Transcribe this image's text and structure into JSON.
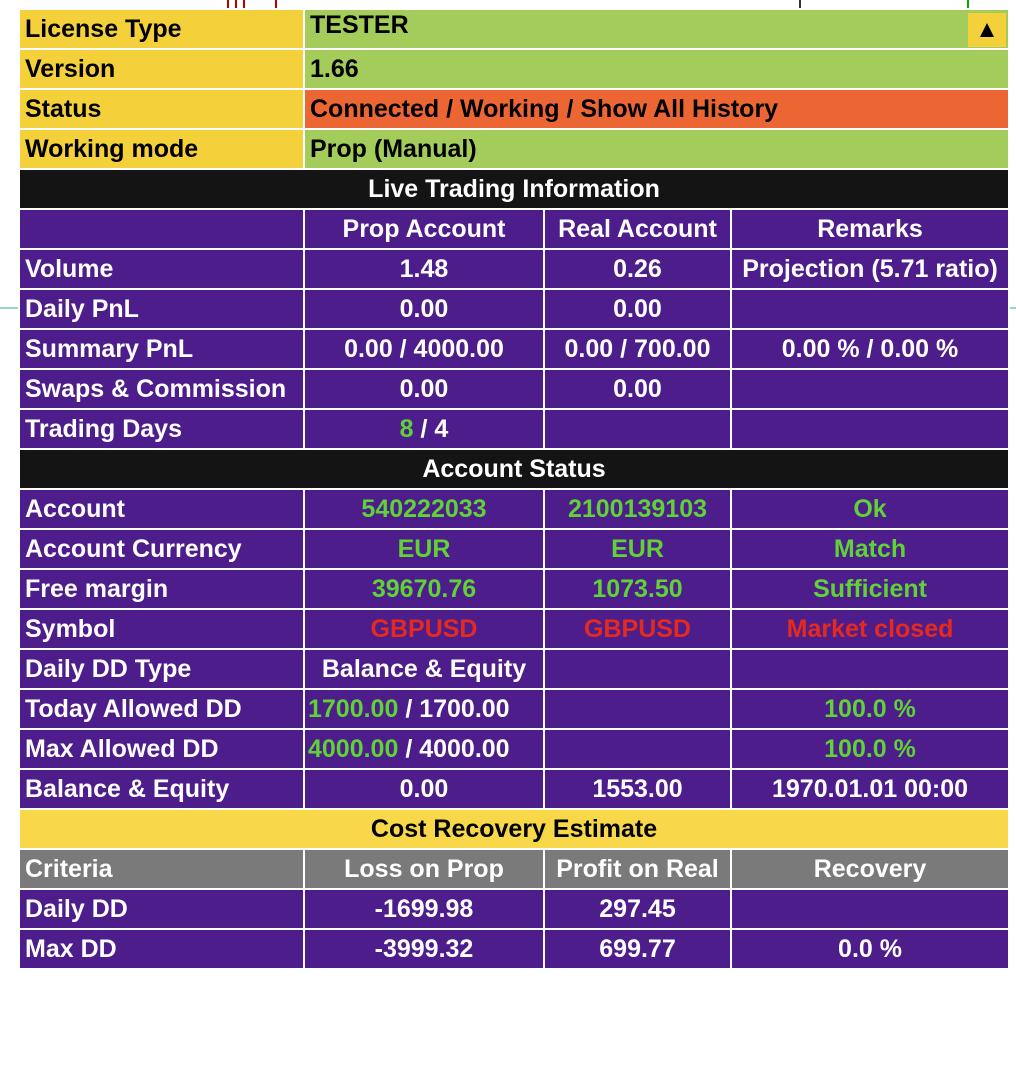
{
  "info": {
    "license_label": "License Type",
    "license_value": "TESTER",
    "version_label": "Version",
    "version_value": "1.66",
    "status_label": "Status",
    "status_value": "Connected / Working / Show All History",
    "mode_label": "Working mode",
    "mode_value": "Prop (Manual)",
    "collapse_icon": "▲"
  },
  "live": {
    "title": "Live Trading Information",
    "headers": [
      "",
      "Prop Account",
      "Real Account",
      "Remarks"
    ],
    "rows": [
      {
        "label": "Volume",
        "prop": "1.48",
        "real": "0.26",
        "remark": "Projection (5.71 ratio)"
      },
      {
        "label": "Daily PnL",
        "prop": "0.00",
        "real": "0.00",
        "remark": ""
      },
      {
        "label": "Summary PnL",
        "prop": "0.00 / 4000.00",
        "real": "0.00 / 700.00",
        "remark": "0.00 % / 0.00 %"
      },
      {
        "label": "Swaps & Commission",
        "prop": "0.00",
        "real": "0.00",
        "remark": ""
      },
      {
        "label": "Trading Days",
        "prop_a": "8",
        "prop_b": " / 4",
        "real": "",
        "remark": ""
      }
    ]
  },
  "account": {
    "title": "Account Status",
    "rows": [
      {
        "label": "Account",
        "prop": "540222033",
        "real": "2100139103",
        "remark": "Ok"
      },
      {
        "label": "Account Currency",
        "prop": "EUR",
        "real": "EUR",
        "remark": "Match"
      },
      {
        "label": "Free margin",
        "prop": "39670.76",
        "real": "1073.50",
        "remark": "Sufficient"
      },
      {
        "label": "Symbol",
        "prop": "GBPUSD",
        "real": "GBPUSD",
        "remark": "Market closed"
      },
      {
        "label": "Daily DD Type",
        "prop": "Balance & Equity",
        "real": "",
        "remark": ""
      },
      {
        "label": "Today Allowed DD",
        "prop_a": "1700.00",
        "prop_b": " / 1700.00",
        "real": "",
        "remark": "100.0 %"
      },
      {
        "label": "Max Allowed DD",
        "prop_a": "4000.00",
        "prop_b": " / 4000.00",
        "real": "",
        "remark": "100.0 %"
      },
      {
        "label": "Balance & Equity",
        "prop": "0.00",
        "real": "1553.00",
        "remark": "1970.01.01 00:00"
      }
    ]
  },
  "recovery": {
    "title": "Cost Recovery Estimate",
    "headers": [
      "Criteria",
      "Loss on Prop",
      "Profit on Real",
      "Recovery"
    ],
    "rows": [
      {
        "label": "Daily DD",
        "prop": "-1699.98",
        "real": "297.45",
        "remark": ""
      },
      {
        "label": "Max DD",
        "prop": "-3999.32",
        "real": "699.77",
        "remark": "0.0 %"
      }
    ]
  },
  "colors": {
    "label_yellow": "#f4d03a",
    "value_green": "#a3cc5a",
    "status_orange": "#ec6634",
    "section_black": "#141414",
    "row_purple": "#4d1d8c",
    "header_gray": "#7a7a7a",
    "text_green": "#5fd236",
    "text_red": "#e42a1e"
  }
}
